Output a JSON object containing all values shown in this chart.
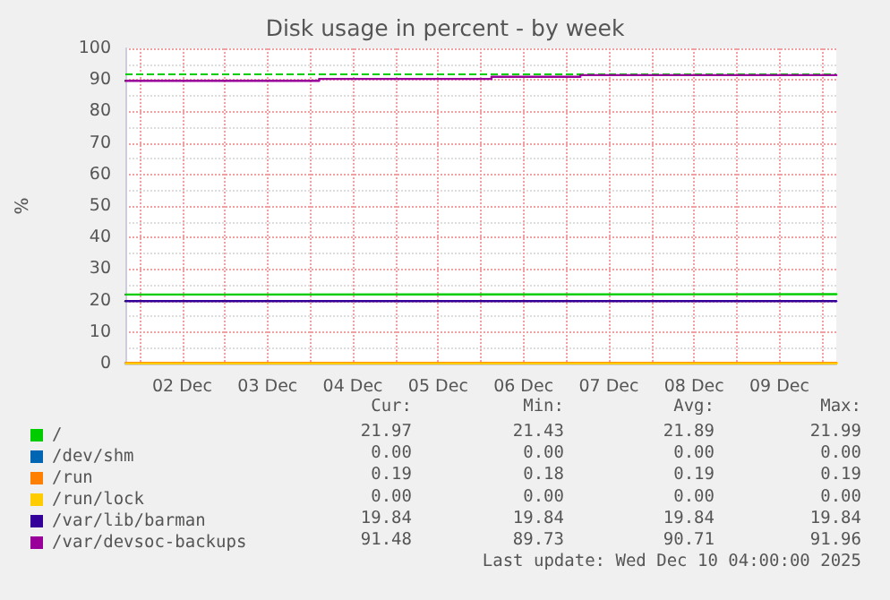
{
  "chart_data": {
    "type": "line",
    "title": "Disk usage in percent - by week",
    "ylabel": "%",
    "xlim": [
      "2025-12-01T20:00",
      "2025-12-10T04:00"
    ],
    "xticks": [
      {
        "value": "2025-12-02T00:00",
        "label": null
      },
      {
        "value": "2025-12-02T12:00",
        "label": "02 Dec"
      },
      {
        "value": "2025-12-03T00:00",
        "label": null
      },
      {
        "value": "2025-12-03T12:00",
        "label": "03 Dec"
      },
      {
        "value": "2025-12-04T00:00",
        "label": null
      },
      {
        "value": "2025-12-04T12:00",
        "label": "04 Dec"
      },
      {
        "value": "2025-12-05T00:00",
        "label": null
      },
      {
        "value": "2025-12-05T12:00",
        "label": "05 Dec"
      },
      {
        "value": "2025-12-06T00:00",
        "label": null
      },
      {
        "value": "2025-12-06T12:00",
        "label": "06 Dec"
      },
      {
        "value": "2025-12-07T00:00",
        "label": null
      },
      {
        "value": "2025-12-07T12:00",
        "label": "07 Dec"
      },
      {
        "value": "2025-12-08T00:00",
        "label": null
      },
      {
        "value": "2025-12-08T12:00",
        "label": "08 Dec"
      },
      {
        "value": "2025-12-09T00:00",
        "label": null
      },
      {
        "value": "2025-12-09T12:00",
        "label": "09 Dec"
      },
      {
        "value": "2025-12-10T00:00",
        "label": null
      }
    ],
    "ylim": [
      0,
      100
    ],
    "yticks": [
      0,
      10,
      20,
      30,
      40,
      50,
      60,
      70,
      80,
      90,
      100
    ],
    "grid": true,
    "legend": "bottom",
    "marker": "none",
    "line_style": "solid",
    "series": [
      {
        "name": "/",
        "color": "#00cc00",
        "x": [
          "2025-12-01T20:00",
          "2025-12-10T04:00"
        ],
        "values": [
          21.9,
          22
        ]
      },
      {
        "name": "/dev/shm",
        "color": "#0066b3",
        "values": [
          null,
          null
        ]
      },
      {
        "name": "/run",
        "color": "#ff8000",
        "x": [
          "2025-12-01T20:00",
          "2025-12-10T04:00"
        ],
        "values": [
          0.2,
          0.2
        ]
      },
      {
        "name": "/run/lock",
        "color": "#ffcc00",
        "x": [
          "2025-12-01T20:00",
          "2025-12-10T04:00"
        ],
        "values": [
          0,
          0
        ]
      },
      {
        "name": "/var/lib/barman",
        "color": "#330099",
        "x": [
          "2025-12-01T20:00",
          "2025-12-10T04:00"
        ],
        "values": [
          19.8,
          19.8
        ]
      },
      {
        "name": "/var/devsoc-backups",
        "color": "#990099",
        "type": "step",
        "x": [
          "2025-12-01T20:00",
          "2025-12-04T02:30",
          "2025-12-06T03:00",
          "2025-12-07T04:00",
          "2025-12-10T04:00"
        ],
        "values": [
          89.7,
          90.3,
          91,
          91.5,
          91.5
        ]
      }
    ],
    "ref_lines": [
      {
        "axis": "y",
        "value": 92,
        "label": null,
        "color": "#00cc00",
        "line_style": "dashed"
      }
    ],
    "annotations": [
      "Cur:",
      "Min:",
      "Avg:",
      "Max:",
      "21.97",
      "21.43",
      "21.89",
      "21.99",
      "0.00",
      "0.00",
      "0.00",
      "0.00",
      "0.19",
      "0.18",
      "0.19",
      "0.19",
      "0.00",
      "0.00",
      "0.00",
      "0.00",
      "19.84",
      "19.84",
      "19.84",
      "19.84",
      "91.48",
      "89.73",
      "90.71",
      "91.96",
      "Last update: Wed Dec 10 04:00:00 2025"
    ]
  }
}
